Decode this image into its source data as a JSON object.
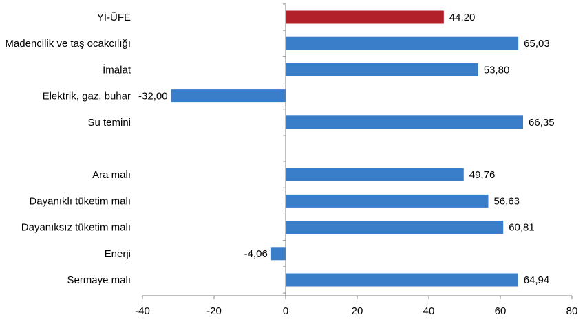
{
  "chart_data": {
    "type": "bar",
    "orientation": "horizontal",
    "categories": [
      "Yİ-ÜFE",
      "Madencilik ve taş ocakcılığı",
      "İmalat",
      "Elektrik, gaz, buhar",
      "Su temini",
      "",
      "Ara malı",
      "Dayanıklı tüketim malı",
      "Dayanıksız tüketim malı",
      "Enerji",
      "Sermaye malı"
    ],
    "values": [
      44.2,
      65.03,
      53.8,
      -32.0,
      66.35,
      null,
      49.76,
      56.63,
      60.81,
      -4.06,
      64.94
    ],
    "value_labels": [
      "44,20",
      "65,03",
      "53,80",
      "-32,00",
      "66,35",
      "",
      "49,76",
      "56,63",
      "60,81",
      "-4,06",
      "64,94"
    ],
    "highlight_index": 0,
    "xlim": [
      -40,
      80
    ],
    "xticks": [
      -40,
      -20,
      0,
      20,
      40,
      60,
      80
    ],
    "title": "",
    "xlabel": "",
    "ylabel": "",
    "grid": false,
    "legend": "none",
    "colors": {
      "bar": "#3A7DC9",
      "highlight": "#B2202A",
      "axis": "#7f7f7f"
    }
  }
}
